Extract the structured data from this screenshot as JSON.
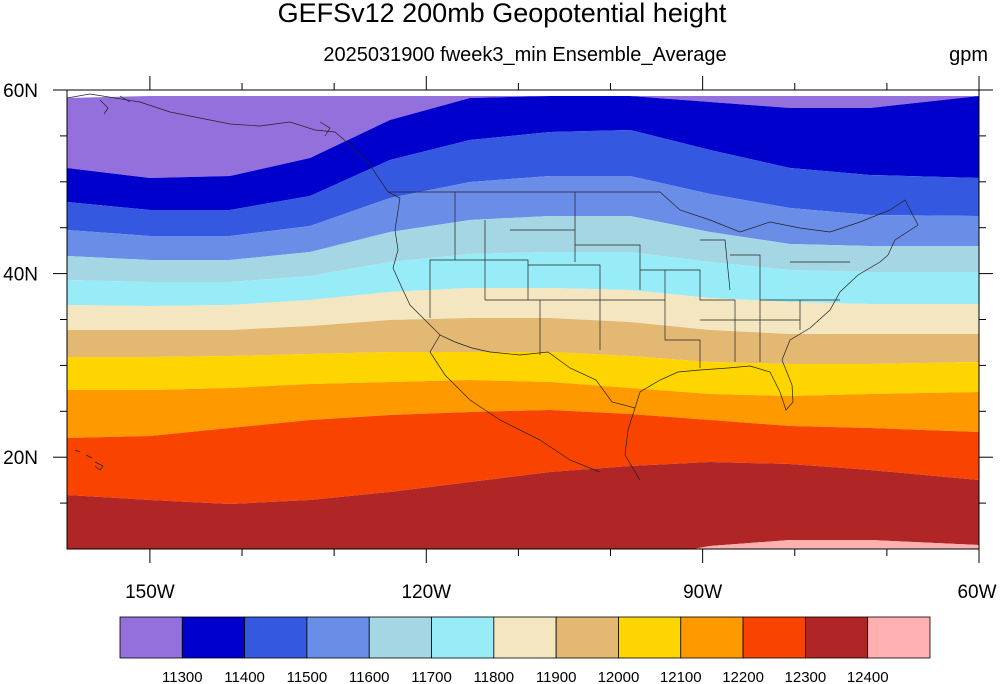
{
  "title": "GEFSv12 200mb Geopotential height",
  "subtitle": "2025031900 fweek3_min Ensemble_Average",
  "units": "gpm",
  "map": {
    "region": "North Pacific / contiguous United States",
    "lon_range": [
      -159,
      -60
    ],
    "lat_range": [
      10,
      60
    ],
    "lon_ticks": [
      {
        "value": -150,
        "label": "150W"
      },
      {
        "value": -120,
        "label": "120W"
      },
      {
        "value": -90,
        "label": "90W"
      },
      {
        "value": -60,
        "label": "60W"
      }
    ],
    "lat_ticks": [
      {
        "value": 60,
        "label": "60N"
      },
      {
        "value": 40,
        "label": "40N"
      },
      {
        "value": 20,
        "label": "20N"
      }
    ],
    "boundaries": [
      "coastlines",
      "US state borders",
      "Canada",
      "Mexico",
      "Hawaii"
    ]
  },
  "colorbar": {
    "levels": [
      "11300",
      "11400",
      "11500",
      "11600",
      "11700",
      "11800",
      "11900",
      "12000",
      "12100",
      "12200",
      "12300",
      "12400"
    ],
    "colors": [
      "#9370db",
      "#0000cd",
      "#3458e0",
      "#6a8de8",
      "#a5d6e3",
      "#98ecf8",
      "#f4e6c0",
      "#e2b873",
      "#ffd500",
      "#ff9900",
      "#f84400",
      "#b02525",
      "#ffb1b1"
    ]
  }
}
